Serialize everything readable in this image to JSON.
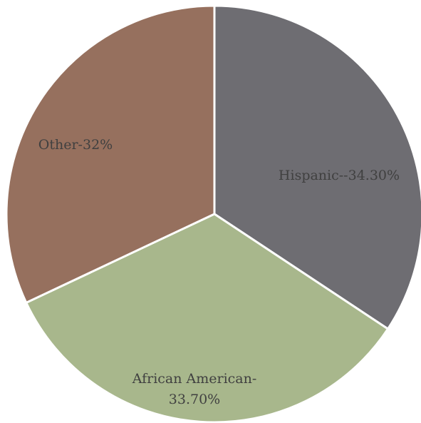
{
  "chart_data": {
    "type": "pie",
    "title": "",
    "slices": [
      {
        "label": "Hispanic--34.30%",
        "value": 34.3,
        "color": "#6e6d72",
        "label_lines": [
          "Hispanic--34.30%"
        ]
      },
      {
        "label": "African American-33.70%",
        "value": 33.7,
        "color": "#a8b78c",
        "label_lines": [
          "African American-",
          "33.70%"
        ]
      },
      {
        "label": "Other-32%",
        "value": 32,
        "color": "#96705e",
        "label_lines": [
          "Other-32%"
        ]
      }
    ],
    "legend": "none"
  }
}
